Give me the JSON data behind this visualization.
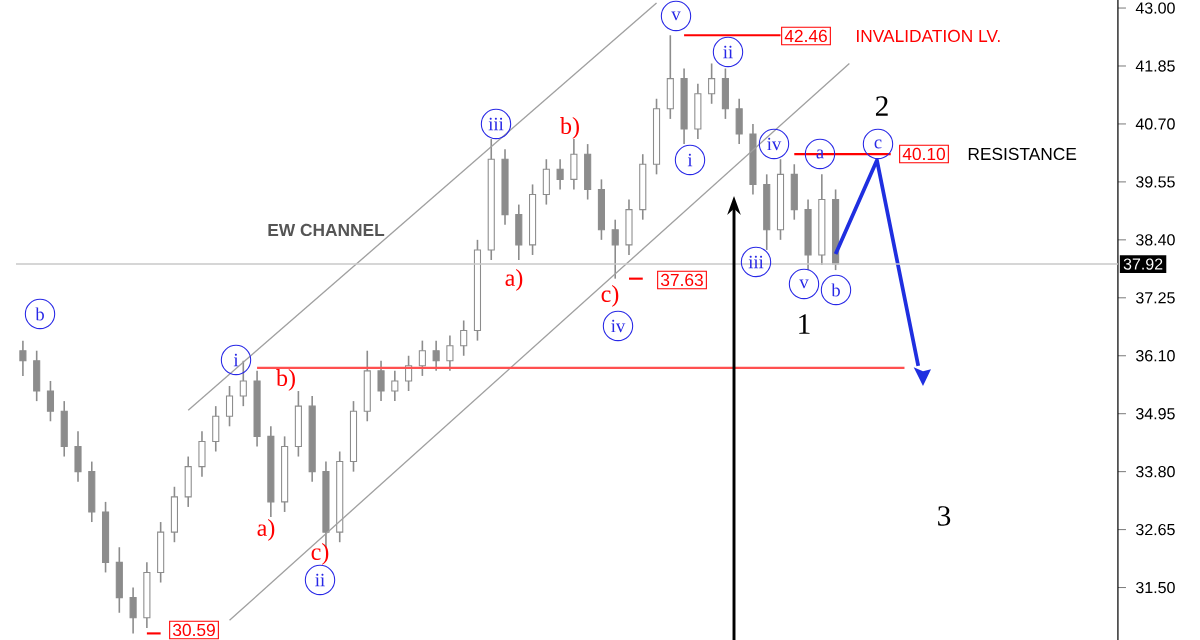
{
  "chart_data": {
    "type": "candlestick",
    "color": "#8c8c8c",
    "categories": [
      null,
      null,
      null,
      null,
      null,
      null,
      null,
      null,
      null,
      null,
      null,
      null,
      null,
      null,
      null,
      null,
      null,
      null,
      null,
      null,
      null,
      null,
      null,
      null,
      null,
      null,
      null,
      null,
      null,
      null,
      null,
      null,
      null,
      null,
      null,
      null,
      null,
      null,
      null,
      null,
      null,
      null,
      null,
      null,
      null,
      null,
      null,
      null,
      null,
      null,
      null,
      null,
      null,
      null,
      null,
      null,
      null,
      null,
      null,
      null,
      null,
      null,
      null,
      null,
      null,
      null,
      null,
      null,
      null,
      null,
      null,
      null,
      null,
      null,
      null,
      null,
      null,
      null,
      null,
      null
    ],
    "ohlc": [
      [
        36.2,
        36.4,
        35.7,
        36.0
      ],
      [
        36.0,
        36.2,
        35.2,
        35.4
      ],
      [
        35.4,
        35.6,
        34.8,
        35.0
      ],
      [
        35.0,
        35.2,
        34.1,
        34.3
      ],
      [
        34.3,
        34.6,
        33.6,
        33.8
      ],
      [
        33.8,
        34.0,
        32.8,
        33.0
      ],
      [
        33.0,
        33.2,
        31.8,
        32.0
      ],
      [
        32.0,
        32.3,
        31.0,
        31.3
      ],
      [
        31.3,
        31.5,
        30.59,
        30.9
      ],
      [
        30.9,
        32.0,
        30.7,
        31.8
      ],
      [
        31.8,
        32.8,
        31.6,
        32.6
      ],
      [
        32.6,
        33.5,
        32.4,
        33.3
      ],
      [
        33.3,
        34.1,
        33.1,
        33.9
      ],
      [
        33.9,
        34.6,
        33.7,
        34.4
      ],
      [
        34.4,
        35.1,
        34.2,
        34.9
      ],
      [
        34.9,
        35.5,
        34.7,
        35.3
      ],
      [
        35.3,
        36.0,
        35.1,
        35.6
      ],
      [
        35.6,
        35.8,
        34.3,
        34.5
      ],
      [
        34.5,
        34.7,
        32.9,
        33.2
      ],
      [
        33.2,
        34.5,
        33.0,
        34.3
      ],
      [
        34.3,
        35.4,
        34.1,
        35.1
      ],
      [
        35.1,
        35.3,
        33.6,
        33.8
      ],
      [
        33.8,
        34.0,
        32.3,
        32.6
      ],
      [
        32.6,
        34.2,
        32.4,
        34.0
      ],
      [
        34.0,
        35.2,
        33.8,
        35.0
      ],
      [
        35.0,
        36.2,
        34.8,
        35.8
      ],
      [
        35.8,
        36.0,
        35.2,
        35.4
      ],
      [
        35.4,
        35.8,
        35.2,
        35.6
      ],
      [
        35.6,
        36.1,
        35.4,
        35.9
      ],
      [
        35.9,
        36.4,
        35.7,
        36.2
      ],
      [
        36.2,
        36.4,
        35.8,
        36.0
      ],
      [
        36.0,
        36.5,
        35.8,
        36.3
      ],
      [
        36.3,
        36.8,
        36.1,
        36.6
      ],
      [
        36.6,
        38.4,
        36.4,
        38.2
      ],
      [
        38.2,
        40.4,
        38.0,
        40.0
      ],
      [
        40.0,
        40.2,
        38.7,
        38.9
      ],
      [
        38.9,
        39.1,
        38.0,
        38.3
      ],
      [
        38.3,
        39.5,
        38.1,
        39.3
      ],
      [
        39.3,
        40.0,
        39.1,
        39.8
      ],
      [
        39.8,
        40.0,
        39.4,
        39.6
      ],
      [
        39.6,
        40.4,
        39.4,
        40.1
      ],
      [
        40.1,
        40.3,
        39.2,
        39.4
      ],
      [
        39.4,
        39.6,
        38.4,
        38.6
      ],
      [
        38.6,
        38.8,
        37.63,
        38.3
      ],
      [
        38.3,
        39.2,
        38.1,
        39.0
      ],
      [
        39.0,
        40.1,
        38.8,
        39.9
      ],
      [
        39.9,
        41.2,
        39.7,
        41.0
      ],
      [
        41.0,
        42.46,
        40.8,
        41.6
      ],
      [
        41.6,
        41.8,
        40.3,
        40.6
      ],
      [
        40.6,
        41.5,
        40.4,
        41.3
      ],
      [
        41.3,
        41.9,
        41.1,
        41.6
      ],
      [
        41.6,
        41.8,
        40.8,
        41.0
      ],
      [
        41.0,
        41.2,
        40.3,
        40.5
      ],
      [
        40.5,
        40.7,
        39.3,
        39.5
      ],
      [
        39.5,
        39.7,
        38.2,
        38.6
      ],
      [
        38.6,
        40.0,
        38.4,
        39.7
      ],
      [
        39.7,
        39.9,
        38.8,
        39.0
      ],
      [
        39.0,
        39.2,
        37.8,
        38.1
      ],
      [
        38.1,
        39.7,
        37.9,
        39.2
      ],
      [
        39.2,
        39.4,
        37.8,
        37.92
      ],
      null,
      null,
      null,
      null,
      null,
      null,
      null,
      null,
      null,
      null,
      null,
      null,
      null,
      null,
      null,
      null,
      null,
      null,
      null,
      null
    ],
    "series": [
      {
        "type": "line",
        "color": "#a0a0a0",
        "values": [
          null,
          null,
          null,
          null,
          null,
          null,
          null,
          null,
          null,
          null,
          null,
          null,
          35.02,
          null,
          null,
          null,
          null,
          null,
          null,
          null,
          null,
          null,
          null,
          null,
          null,
          null,
          null,
          null,
          null,
          null,
          null,
          null,
          null,
          null,
          null,
          null,
          null,
          null,
          null,
          null,
          null,
          null,
          null,
          null,
          null,
          null,
          43.1,
          null,
          null,
          null,
          null,
          null,
          null,
          null,
          null,
          null,
          null,
          null,
          null,
          null,
          null,
          null,
          null,
          null,
          null,
          null,
          null,
          null,
          null,
          null,
          null,
          null,
          null,
          null,
          null,
          null,
          null,
          null,
          null,
          null
        ]
      },
      {
        "type": "line",
        "color": "#a0a0a0",
        "values": [
          null,
          null,
          null,
          null,
          null,
          null,
          null,
          null,
          null,
          null,
          null,
          null,
          null,
          null,
          null,
          30.85,
          null,
          null,
          null,
          null,
          null,
          null,
          null,
          null,
          null,
          null,
          null,
          null,
          null,
          null,
          null,
          null,
          null,
          null,
          null,
          null,
          null,
          null,
          null,
          null,
          null,
          null,
          null,
          null,
          null,
          null,
          null,
          null,
          null,
          null,
          null,
          null,
          null,
          null,
          null,
          null,
          null,
          null,
          null,
          null,
          41.9,
          null,
          null,
          null,
          null,
          null,
          null,
          null,
          null,
          null,
          null,
          null,
          null,
          null,
          null,
          null,
          null,
          null,
          null,
          null
        ]
      },
      {
        "type": "line",
        "color": "#1f2fe0",
        "values": [
          null,
          null,
          null,
          null,
          null,
          null,
          null,
          null,
          null,
          null,
          null,
          null,
          null,
          null,
          null,
          null,
          null,
          null,
          null,
          null,
          null,
          null,
          null,
          null,
          null,
          null,
          null,
          null,
          null,
          null,
          null,
          null,
          null,
          null,
          null,
          null,
          null,
          null,
          null,
          null,
          null,
          null,
          null,
          null,
          null,
          null,
          null,
          null,
          null,
          null,
          null,
          null,
          null,
          null,
          null,
          null,
          null,
          null,
          null,
          38.12,
          null,
          null,
          39.98,
          null,
          null,
          35.9,
          null,
          null,
          null,
          null,
          null,
          null,
          null,
          null,
          null,
          null,
          null,
          null,
          null,
          null
        ]
      },
      {
        "type": "line",
        "color": "#ff0000",
        "values": [
          null,
          null,
          null,
          null,
          null,
          null,
          null,
          null,
          null,
          null,
          null,
          null,
          null,
          null,
          null,
          null,
          null,
          null,
          null,
          null,
          null,
          null,
          null,
          null,
          null,
          null,
          null,
          null,
          null,
          null,
          null,
          null,
          null,
          null,
          null,
          null,
          null,
          null,
          null,
          null,
          null,
          null,
          null,
          null,
          null,
          null,
          null,
          null,
          42.46,
          null,
          null,
          null,
          null,
          null,
          null,
          42.46,
          null,
          null,
          null,
          null,
          null,
          null,
          null,
          null,
          null,
          null,
          null,
          null,
          null,
          null,
          null,
          null,
          null,
          null,
          null,
          null,
          null,
          null,
          null,
          null
        ]
      },
      {
        "type": "line",
        "color": "#ff0000",
        "values": [
          null,
          null,
          null,
          null,
          null,
          null,
          null,
          null,
          null,
          null,
          null,
          null,
          null,
          null,
          null,
          null,
          null,
          null,
          null,
          null,
          null,
          null,
          null,
          null,
          null,
          null,
          null,
          null,
          null,
          null,
          null,
          null,
          null,
          null,
          null,
          null,
          null,
          null,
          null,
          null,
          null,
          null,
          null,
          null,
          null,
          null,
          null,
          null,
          null,
          null,
          null,
          null,
          null,
          null,
          null,
          null,
          40.1,
          null,
          null,
          null,
          null,
          null,
          null,
          40.1,
          null,
          null,
          null,
          null,
          null,
          null,
          null,
          null,
          null,
          null,
          null,
          null,
          null,
          null,
          null,
          null
        ]
      },
      {
        "type": "line",
        "color": "#ff0000",
        "values": [
          null,
          null,
          null,
          null,
          null,
          null,
          null,
          null,
          null,
          null,
          null,
          null,
          null,
          null,
          null,
          null,
          null,
          null,
          null,
          null,
          null,
          null,
          null,
          null,
          null,
          null,
          null,
          null,
          null,
          null,
          null,
          null,
          null,
          null,
          null,
          null,
          null,
          null,
          null,
          null,
          null,
          null,
          null,
          null,
          37.63,
          37.63,
          null,
          null,
          null,
          null,
          null,
          null,
          null,
          null,
          null,
          null,
          null,
          null,
          null,
          null,
          null,
          null,
          null,
          null,
          null,
          null,
          null,
          null,
          null,
          null,
          null,
          null,
          null,
          null,
          null,
          null,
          null,
          null,
          null,
          null
        ]
      },
      {
        "type": "line",
        "color": "#ff0000",
        "values": [
          null,
          null,
          null,
          null,
          null,
          null,
          null,
          null,
          null,
          30.59,
          30.59,
          null,
          null,
          null,
          null,
          null,
          null,
          null,
          null,
          null,
          null,
          null,
          null,
          null,
          null,
          null,
          null,
          null,
          null,
          null,
          null,
          null,
          null,
          null,
          null,
          null,
          null,
          null,
          null,
          null,
          null,
          null,
          null,
          null,
          null,
          null,
          null,
          null,
          null,
          null,
          null,
          null,
          null,
          null,
          null,
          null,
          null,
          null,
          null,
          null,
          null,
          null,
          null,
          null,
          null,
          null,
          null,
          null,
          null,
          null,
          null,
          null,
          null,
          null,
          null,
          null,
          null,
          null,
          null,
          null
        ]
      },
      {
        "type": "line",
        "color": "#ff5050",
        "values": [
          null,
          null,
          null,
          null,
          null,
          null,
          null,
          null,
          null,
          null,
          null,
          null,
          null,
          null,
          null,
          null,
          null,
          35.86,
          null,
          null,
          null,
          null,
          null,
          null,
          null,
          null,
          null,
          null,
          null,
          null,
          null,
          null,
          null,
          null,
          null,
          null,
          null,
          null,
          null,
          null,
          null,
          null,
          null,
          null,
          null,
          null,
          null,
          null,
          null,
          null,
          null,
          null,
          null,
          null,
          null,
          null,
          null,
          null,
          null,
          null,
          null,
          null,
          null,
          null,
          35.86,
          null,
          null,
          null,
          null,
          null,
          null,
          null,
          null,
          null,
          null,
          null,
          null,
          null,
          null,
          null
        ]
      }
    ],
    "ylim": [
      30.46,
      43.16
    ],
    "yticks": [
      {
        "value": 43.0,
        "label": "43.00"
      },
      {
        "value": 41.85,
        "label": "41.85"
      },
      {
        "value": 40.7,
        "label": "40.70"
      },
      {
        "value": 39.55,
        "label": "39.55"
      },
      {
        "value": 38.4,
        "label": "38.40"
      },
      {
        "value": 37.25,
        "label": "37.25"
      },
      {
        "value": 36.1,
        "label": "36.10"
      },
      {
        "value": 34.95,
        "label": "34.95"
      },
      {
        "value": 33.8,
        "label": "33.80"
      },
      {
        "value": 32.65,
        "label": "32.65"
      },
      {
        "value": 31.5,
        "label": "31.50"
      }
    ],
    "tick_labels": "y",
    "ref_lines": [
      {
        "axis": "y",
        "value": 37.92,
        "label": "37.92",
        "color": "#c8c8c8"
      }
    ],
    "annotations": [
      "EW CHANNEL",
      "42.46",
      "INVALIDATION LV.",
      "40.10",
      "RESISTANCE",
      "37.63",
      "30.59",
      "b",
      "i",
      "ii",
      "iii",
      "iv",
      "v",
      "i",
      "ii",
      "iii",
      "iv",
      "v",
      "a",
      "b",
      "c",
      "b)",
      "a)",
      "c)",
      "a)",
      "b)",
      "c)",
      "2",
      "1",
      "3"
    ]
  }
}
